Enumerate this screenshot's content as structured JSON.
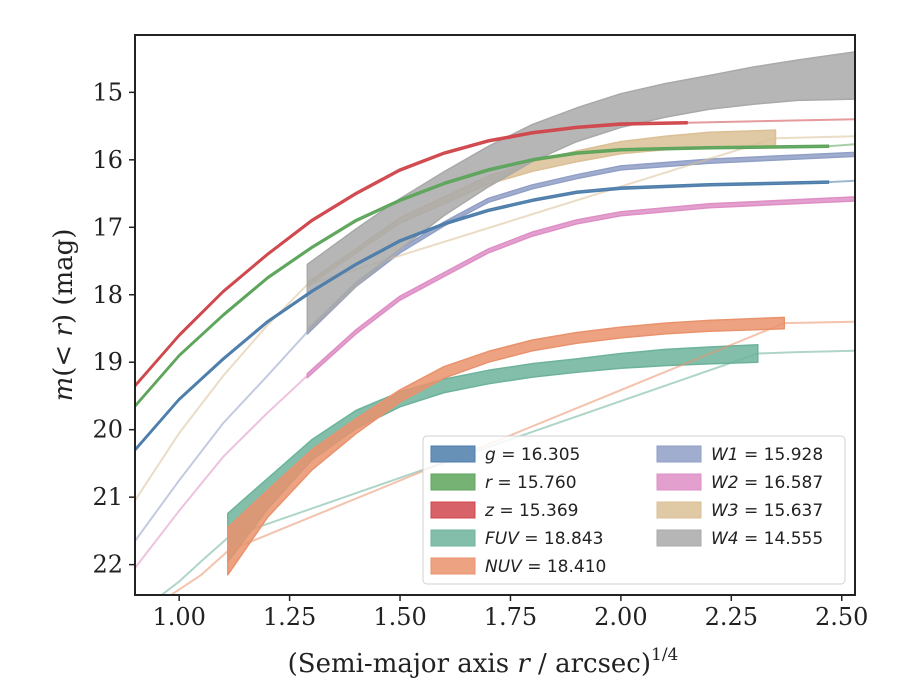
{
  "chart_data": {
    "type": "area",
    "xlabel": "(Semi-major axis r / arcsec)",
    "xlabel_parts": {
      "prefix": "(Semi-major axis ",
      "var": "r",
      "suffix": " / arcsec)",
      "sup": "1/4"
    },
    "ylabel": "m(< r) (mag)",
    "ylabel_parts": {
      "m": "m",
      "open": "(",
      "lt": "< ",
      "r": "r",
      "rest": ") (mag)"
    },
    "xlim": [
      0.9,
      2.53
    ],
    "ylim": [
      22.45,
      14.15
    ],
    "y_inverted": true,
    "xticks": [
      1.0,
      1.25,
      1.5,
      1.75,
      2.0,
      2.25,
      2.5
    ],
    "xtick_labels": [
      "1.00",
      "1.25",
      "1.50",
      "1.75",
      "2.00",
      "2.25",
      "2.50"
    ],
    "yticks": [
      15,
      16,
      17,
      18,
      19,
      20,
      21,
      22
    ],
    "ytick_labels": [
      "15",
      "16",
      "17",
      "18",
      "19",
      "20",
      "21",
      "22"
    ],
    "grid": false,
    "legend_position": "bottom-right",
    "series": [
      {
        "name": "g",
        "total": "16.305",
        "color": "#4e7eab",
        "band_x": [
          0.9,
          1.0,
          1.1,
          1.2,
          1.3,
          1.4,
          1.5,
          1.6,
          1.7,
          1.8,
          1.9,
          2.0,
          2.2,
          2.47
        ],
        "band_y": [
          20.3,
          19.55,
          18.95,
          18.4,
          17.95,
          17.55,
          17.2,
          16.95,
          16.75,
          16.6,
          16.48,
          16.42,
          16.37,
          16.33
        ],
        "band_width": [
          0.03,
          0.03,
          0.03,
          0.03,
          0.03,
          0.03,
          0.03,
          0.03,
          0.03,
          0.03,
          0.03,
          0.03,
          0.03,
          0.03
        ],
        "model_x": [
          2.47,
          2.53
        ],
        "model_y": [
          16.33,
          16.31
        ]
      },
      {
        "name": "r",
        "total": "15.760",
        "color": "#5ea55c",
        "band_x": [
          0.9,
          1.0,
          1.1,
          1.2,
          1.3,
          1.4,
          1.5,
          1.6,
          1.7,
          1.8,
          1.9,
          2.0,
          2.2,
          2.47
        ],
        "band_y": [
          19.65,
          18.9,
          18.3,
          17.75,
          17.3,
          16.9,
          16.6,
          16.35,
          16.15,
          16.0,
          15.9,
          15.85,
          15.82,
          15.8
        ],
        "band_width": [
          0.03,
          0.03,
          0.03,
          0.03,
          0.03,
          0.03,
          0.03,
          0.03,
          0.03,
          0.03,
          0.03,
          0.03,
          0.03,
          0.03
        ],
        "model_x": [
          2.47,
          2.53
        ],
        "model_y": [
          15.8,
          15.77
        ]
      },
      {
        "name": "z",
        "total": "15.369",
        "color": "#d0474c",
        "band_x": [
          0.9,
          1.0,
          1.1,
          1.2,
          1.3,
          1.4,
          1.5,
          1.6,
          1.7,
          1.8,
          1.9,
          2.0,
          2.15
        ],
        "band_y": [
          19.35,
          18.6,
          17.95,
          17.4,
          16.9,
          16.5,
          16.15,
          15.9,
          15.72,
          15.6,
          15.52,
          15.47,
          15.45
        ],
        "band_width": [
          0.03,
          0.03,
          0.03,
          0.03,
          0.03,
          0.03,
          0.03,
          0.03,
          0.03,
          0.03,
          0.03,
          0.03,
          0.03
        ],
        "model_x": [
          2.15,
          2.53
        ],
        "model_y": [
          15.45,
          15.4
        ]
      },
      {
        "name": "FUV",
        "total": "18.843",
        "color": "#6db39c",
        "band_x": [
          1.11,
          1.2,
          1.3,
          1.4,
          1.5,
          1.6,
          1.7,
          1.8,
          1.9,
          2.0,
          2.1,
          2.2,
          2.31
        ],
        "band_y": [
          21.6,
          20.95,
          20.3,
          19.85,
          19.55,
          19.35,
          19.22,
          19.12,
          19.05,
          18.98,
          18.93,
          18.9,
          18.87
        ],
        "band_width": [
          0.72,
          0.45,
          0.3,
          0.27,
          0.22,
          0.2,
          0.2,
          0.2,
          0.2,
          0.22,
          0.24,
          0.25,
          0.26
        ],
        "model_x": [
          0.95,
          1.0,
          1.05,
          1.11,
          2.31,
          2.4,
          2.53
        ],
        "model_y": [
          22.5,
          22.25,
          21.95,
          21.6,
          18.87,
          18.85,
          18.83
        ]
      },
      {
        "name": "NUV",
        "total": "18.410",
        "color": "#ea926c",
        "band_x": [
          1.11,
          1.2,
          1.3,
          1.4,
          1.5,
          1.6,
          1.7,
          1.8,
          1.9,
          2.0,
          2.1,
          2.2,
          2.37
        ],
        "band_y": [
          21.8,
          21.1,
          20.45,
          19.95,
          19.5,
          19.15,
          18.92,
          18.75,
          18.64,
          18.56,
          18.5,
          18.46,
          18.42
        ],
        "band_width": [
          0.7,
          0.4,
          0.3,
          0.22,
          0.18,
          0.17,
          0.16,
          0.16,
          0.16,
          0.16,
          0.16,
          0.16,
          0.17
        ],
        "model_x": [
          0.97,
          1.05,
          1.11,
          2.37,
          2.53
        ],
        "model_y": [
          22.5,
          22.15,
          21.8,
          18.42,
          18.4
        ]
      },
      {
        "name": "W1",
        "total": "15.928",
        "color": "#909fc6",
        "band_x": [
          1.29,
          1.4,
          1.5,
          1.6,
          1.7,
          1.8,
          1.9,
          2.0,
          2.2,
          2.53
        ],
        "band_y": [
          18.55,
          17.85,
          17.35,
          16.95,
          16.6,
          16.4,
          16.25,
          16.12,
          16.02,
          15.92
        ],
        "band_width": [
          0.06,
          0.06,
          0.06,
          0.06,
          0.06,
          0.06,
          0.06,
          0.06,
          0.06,
          0.06
        ],
        "model_x": [
          0.9,
          1.0,
          1.1,
          1.2,
          1.29
        ],
        "model_y": [
          21.65,
          20.75,
          19.9,
          19.2,
          18.55
        ]
      },
      {
        "name": "W2",
        "total": "16.587",
        "color": "#de8fc5",
        "band_x": [
          1.29,
          1.4,
          1.5,
          1.6,
          1.7,
          1.8,
          1.9,
          2.0,
          2.2,
          2.53
        ],
        "band_y": [
          19.2,
          18.55,
          18.05,
          17.7,
          17.35,
          17.1,
          16.92,
          16.8,
          16.68,
          16.58
        ],
        "band_width": [
          0.06,
          0.06,
          0.06,
          0.06,
          0.06,
          0.06,
          0.06,
          0.06,
          0.06,
          0.06
        ],
        "model_x": [
          0.9,
          1.0,
          1.1,
          1.2,
          1.29
        ],
        "model_y": [
          22.05,
          21.2,
          20.4,
          19.75,
          19.2
        ]
      },
      {
        "name": "W3",
        "total": "15.637",
        "color": "#dbbf95",
        "band_x": [
          1.29,
          1.4,
          1.5,
          1.6,
          1.7,
          1.8,
          1.9,
          2.0,
          2.1,
          2.2,
          2.35
        ],
        "band_y": [
          17.85,
          17.35,
          16.9,
          16.6,
          16.3,
          16.1,
          15.95,
          15.82,
          15.75,
          15.7,
          15.68
        ],
        "band_width": [
          0.06,
          0.06,
          0.08,
          0.1,
          0.12,
          0.14,
          0.16,
          0.18,
          0.2,
          0.22,
          0.24
        ],
        "model_x": [
          0.9,
          1.0,
          1.1,
          1.2,
          1.29,
          2.35,
          2.53
        ],
        "model_y": [
          21.05,
          20.05,
          19.2,
          18.45,
          17.85,
          15.68,
          15.65
        ]
      },
      {
        "name": "W4",
        "total": "14.555",
        "color": "#a9a9a9",
        "band_x": [
          1.29,
          1.4,
          1.5,
          1.6,
          1.7,
          1.8,
          1.9,
          2.0,
          2.1,
          2.2,
          2.3,
          2.4,
          2.53
        ],
        "band_y": [
          18.05,
          17.45,
          16.95,
          16.5,
          16.1,
          15.75,
          15.48,
          15.27,
          15.12,
          15.0,
          14.9,
          14.82,
          14.75
        ],
        "band_width": [
          1.0,
          0.85,
          0.75,
          0.65,
          0.6,
          0.55,
          0.5,
          0.5,
          0.5,
          0.5,
          0.55,
          0.6,
          0.7
        ],
        "model_x": [],
        "model_y": []
      }
    ],
    "draw_order": [
      "FUV",
      "NUV",
      "W1",
      "W2",
      "W3",
      "W4",
      "g",
      "r",
      "z"
    ],
    "legend": [
      {
        "var": "g",
        "text": " = 16.305",
        "color": "#4e7eab"
      },
      {
        "var": "r",
        "text": " = 15.760",
        "color": "#5ea55c"
      },
      {
        "var": "z",
        "text": " = 15.369",
        "color": "#d0474c"
      },
      {
        "var": "FUV",
        "text": " = 18.843",
        "color": "#6db39c"
      },
      {
        "var": "NUV",
        "text": " = 18.410",
        "color": "#ea926c"
      },
      {
        "var": "W1",
        "text": " = 15.928",
        "color": "#909fc6"
      },
      {
        "var": "W2",
        "text": " = 16.587",
        "color": "#de8fc5"
      },
      {
        "var": "W3",
        "text": " = 15.637",
        "color": "#dbbf95"
      },
      {
        "var": "W4",
        "text": " = 14.555",
        "color": "#a9a9a9"
      }
    ]
  }
}
